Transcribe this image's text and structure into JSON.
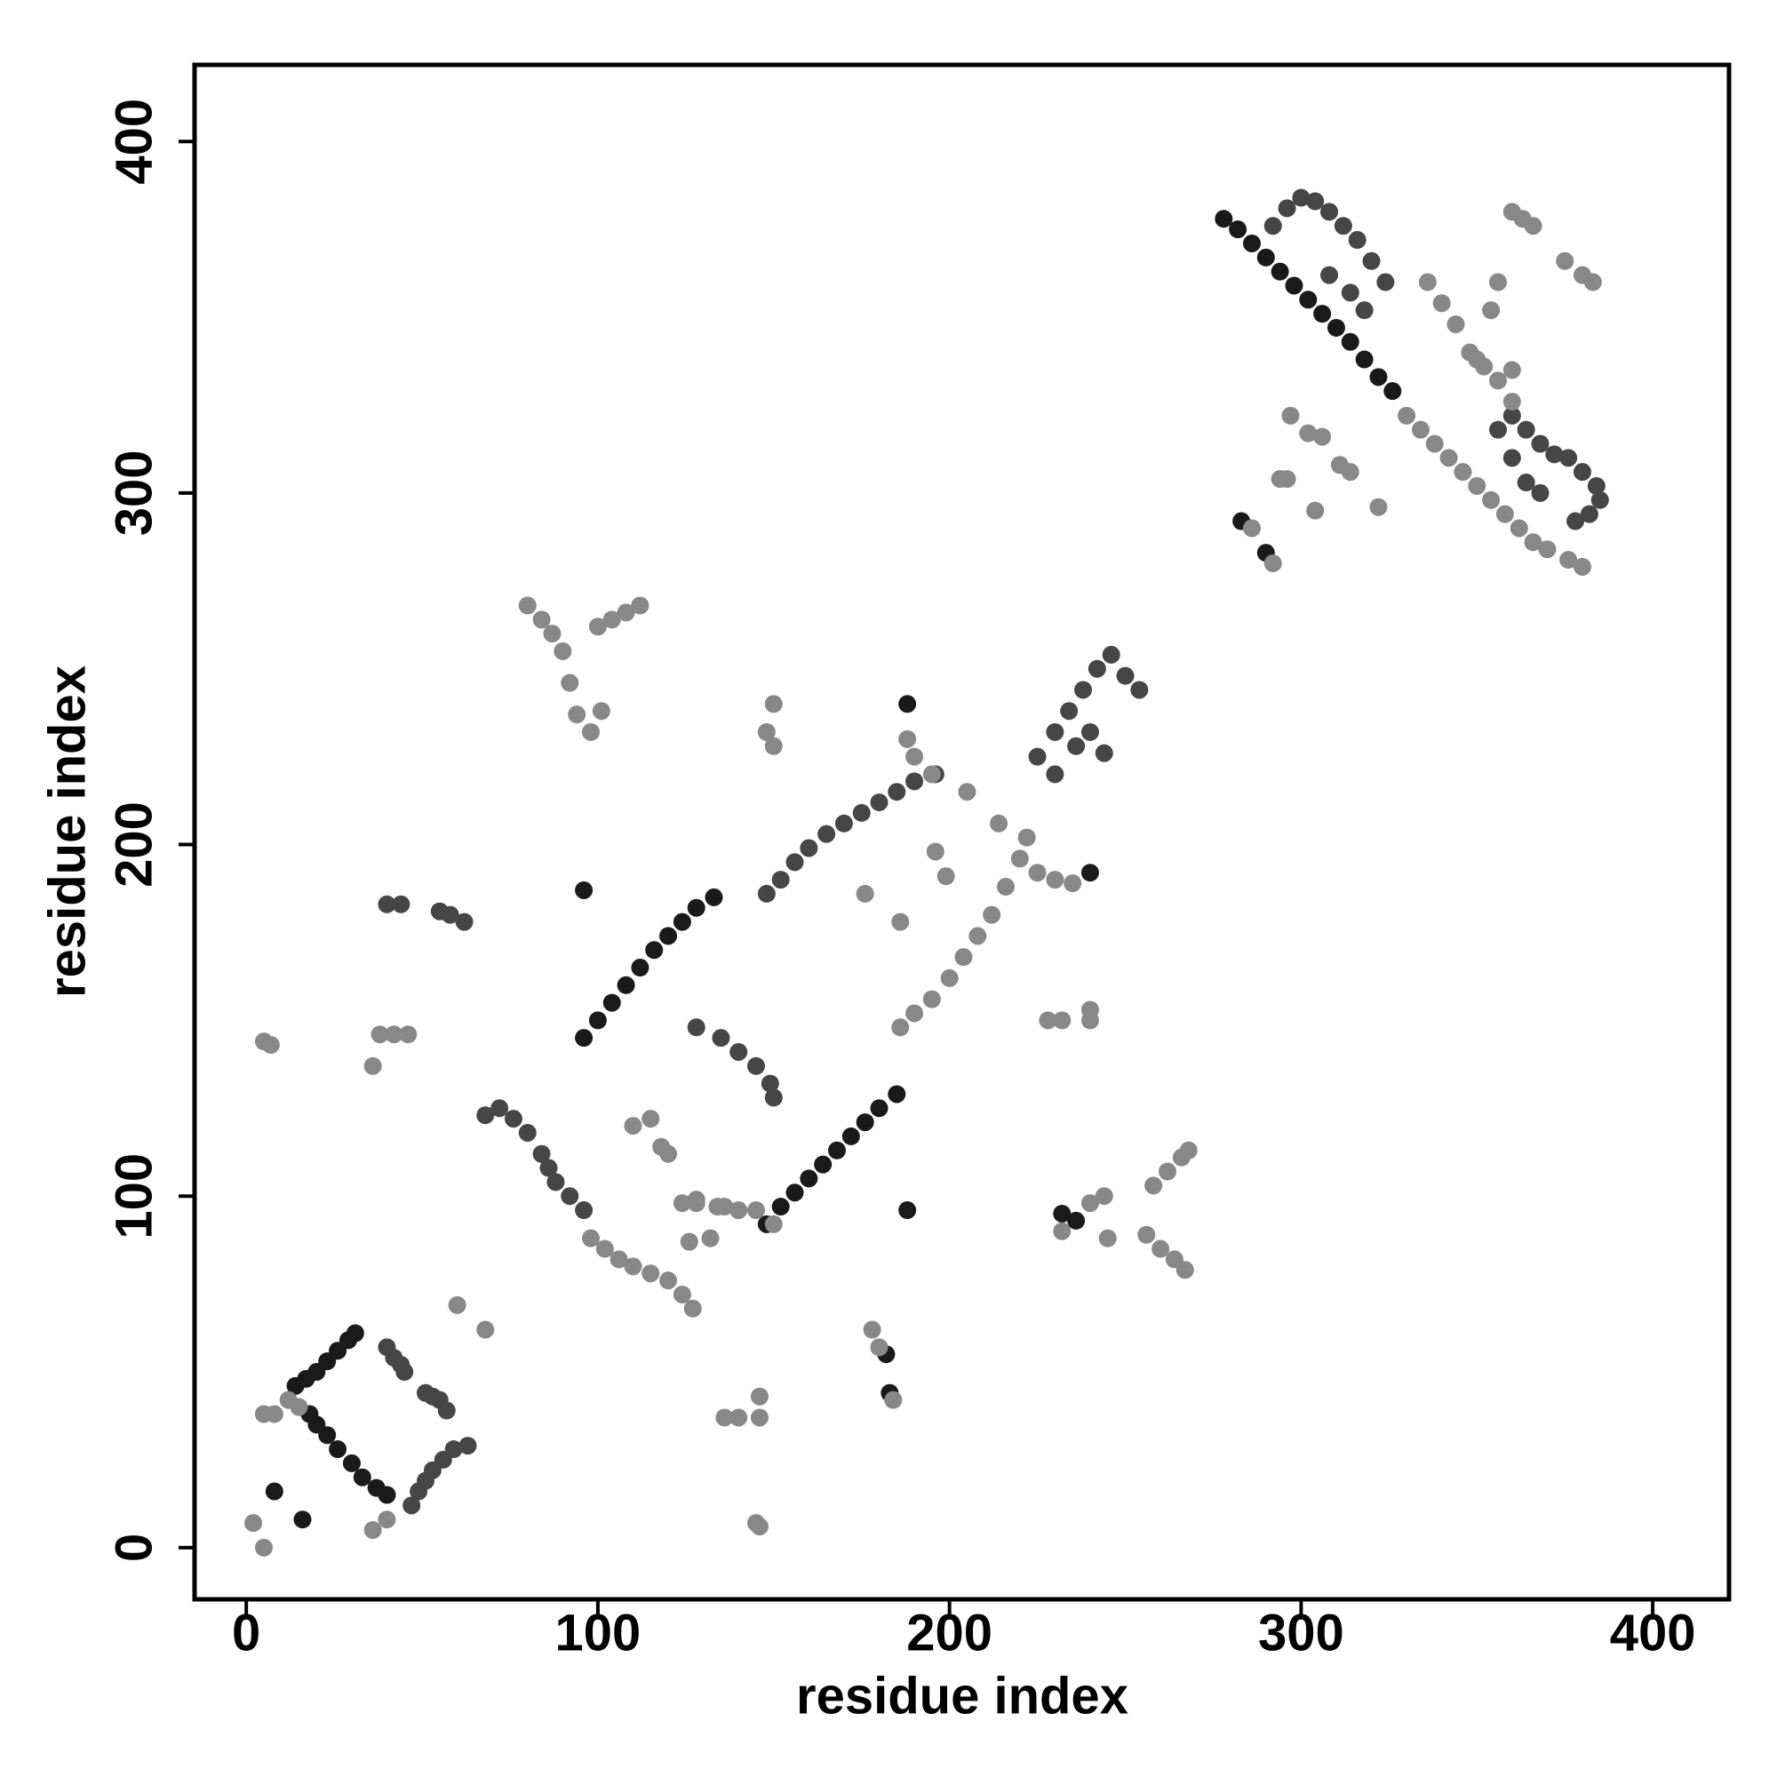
{
  "chart_data": {
    "type": "scatter",
    "x_label": "residue index",
    "y_label": "residue index",
    "xlim": [
      -14.7,
      421.7
    ],
    "ylim": [
      -14.7,
      421.8
    ],
    "xticks": [
      0,
      100,
      200,
      300,
      400
    ],
    "yticks": [
      0,
      100,
      200,
      300,
      400
    ],
    "grid": false,
    "series": [
      {
        "color": "#1a1a1a",
        "x": [
          14,
          17,
          20,
          23,
          26,
          29,
          31,
          18,
          20,
          23,
          26,
          30,
          33,
          37,
          40,
          96,
          100,
          104,
          108,
          112,
          116,
          120,
          124,
          128,
          133,
          148,
          152,
          156,
          160,
          164,
          168,
          172,
          176,
          180,
          185,
          278,
          282,
          286,
          290,
          294,
          298,
          302,
          306,
          310,
          314,
          318,
          322,
          326,
          96,
          8,
          16,
          188,
          188,
          182,
          183,
          240,
          232,
          236,
          290,
          283
        ],
        "y": [
          46,
          48,
          50,
          53,
          56,
          59,
          61,
          38,
          35,
          32,
          28,
          24,
          20,
          17,
          15,
          145,
          150,
          155,
          160,
          165,
          170,
          174,
          178,
          182,
          185,
          92,
          97,
          101,
          105,
          109,
          113,
          117,
          121,
          125,
          129,
          378,
          375,
          371,
          367,
          363,
          359,
          355,
          351,
          347,
          343,
          338,
          333,
          329,
          187,
          16,
          8,
          240,
          96,
          55,
          44,
          192,
          95,
          93,
          283,
          292
        ]
      },
      {
        "color": "#464646",
        "x": [
          40,
          42,
          44,
          45,
          51,
          53,
          55,
          57,
          47,
          49,
          51,
          53,
          56,
          59,
          63,
          68,
          72,
          76,
          80,
          84,
          86,
          88,
          92,
          96,
          148,
          152,
          156,
          160,
          165,
          170,
          175,
          180,
          185,
          190,
          196,
          292,
          296,
          300,
          304,
          308,
          312,
          316,
          320,
          324,
          318,
          314,
          308,
          128,
          135,
          140,
          145,
          149,
          150,
          225,
          230,
          234,
          238,
          242,
          246,
          250,
          254,
          240,
          244,
          236,
          230,
          356,
          360,
          364,
          368,
          372,
          376,
          380,
          384,
          385,
          382,
          378,
          360,
          364,
          368,
          40,
          44,
          55,
          58,
          62
        ],
        "y": [
          57,
          54,
          52,
          50,
          44,
          43,
          42,
          39,
          12,
          16,
          19,
          22,
          25,
          28,
          29,
          123,
          125,
          122,
          118,
          112,
          108,
          104,
          100,
          96,
          186,
          190,
          195,
          199,
          203,
          206,
          209,
          212,
          215,
          218,
          220,
          376,
          381,
          384,
          383,
          380,
          376,
          372,
          366,
          360,
          352,
          357,
          362,
          148,
          145,
          141,
          137,
          132,
          128,
          225,
          232,
          238,
          244,
          250,
          254,
          248,
          244,
          232,
          226,
          228,
          220,
          318,
          322,
          318,
          314,
          311,
          310,
          306,
          302,
          298,
          294,
          292,
          310,
          303,
          300,
          183,
          183,
          181,
          180,
          178
        ]
      },
      {
        "color": "#888888",
        "x": [
          5,
          8,
          12,
          15,
          2,
          5,
          36,
          40,
          60,
          68,
          98,
          102,
          106,
          110,
          115,
          120,
          124,
          127,
          186,
          190,
          195,
          200,
          204,
          208,
          212,
          216,
          220,
          222,
          188,
          190,
          195,
          205,
          214,
          124,
          128,
          136,
          140,
          145,
          150,
          110,
          115,
          118,
          120,
          176,
          186,
          196,
          199,
          150,
          148,
          150,
          80,
          84,
          87,
          90,
          92,
          94,
          98,
          101,
          100,
          104,
          108,
          112,
          38,
          42,
          46,
          36,
          5,
          7,
          225,
          230,
          235,
          228,
          232,
          240,
          240,
          240,
          244,
          245,
          232,
          258,
          262,
          266,
          268,
          256,
          260,
          264,
          267,
          136,
          140,
          146,
          146,
          145,
          146,
          178,
          180,
          184,
          126,
          132,
          128,
          134,
          330,
          334,
          338,
          342,
          346,
          350,
          354,
          358,
          362,
          366,
          370,
          376,
          380,
          356,
          354,
          360,
          363,
          366,
          375,
          380,
          383,
          336,
          340,
          344,
          348,
          352,
          356,
          360,
          297,
          302,
          306,
          311,
          314,
          322,
          304,
          296,
          294,
          286,
          292,
          360,
          350
        ],
        "y": [
          38,
          38,
          42,
          40,
          7,
          0,
          5,
          8,
          69,
          62,
          88,
          85,
          82,
          80,
          78,
          76,
          72,
          68,
          148,
          152,
          156,
          162,
          168,
          174,
          180,
          188,
          196,
          202,
          230,
          225,
          220,
          215,
          206,
          98,
          98,
          97,
          96,
          96,
          92,
          120,
          122,
          114,
          112,
          186,
          178,
          198,
          191,
          240,
          232,
          228,
          268,
          264,
          260,
          255,
          246,
          237,
          232,
          238,
          262,
          264,
          266,
          268,
          146,
          146,
          146,
          137,
          144,
          143,
          192,
          190,
          189,
          150,
          150,
          150,
          153,
          98,
          100,
          88,
          90,
          103,
          107,
          111,
          113,
          89,
          85,
          82,
          79,
          37,
          37,
          37,
          43,
          7,
          6,
          62,
          57,
          42,
          87,
          88,
          99,
          97,
          322,
          318,
          314,
          310,
          306,
          302,
          298,
          294,
          290,
          286,
          284,
          281,
          279,
          360,
          352,
          380,
          378,
          376,
          366,
          362,
          360,
          360,
          354,
          348,
          340,
          336,
          332,
          326,
          322,
          317,
          316,
          308,
          306,
          296,
          295,
          304,
          304,
          290,
          280,
          335,
          338
        ]
      }
    ]
  }
}
